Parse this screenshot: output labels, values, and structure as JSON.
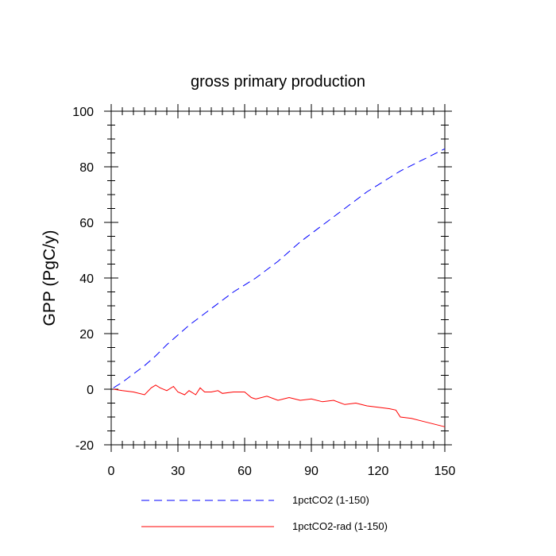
{
  "chart_data": {
    "type": "line",
    "title": "gross primary production",
    "xlabel": "",
    "ylabel": "GPP  (PgC/y)",
    "xlim": [
      0,
      150
    ],
    "ylim": [
      -20,
      100
    ],
    "x_ticks": [
      0,
      30,
      60,
      90,
      120,
      150
    ],
    "y_ticks": [
      -20,
      0,
      20,
      40,
      60,
      80,
      100
    ],
    "grid": false,
    "legend_position": "bottom",
    "series": [
      {
        "name": "1pctCO2 (1-150)",
        "color": "#0000ff",
        "line_style": "dashed",
        "x": [
          1,
          5,
          10,
          15,
          20,
          25,
          30,
          35,
          40,
          45,
          50,
          55,
          60,
          65,
          70,
          75,
          80,
          85,
          90,
          95,
          100,
          105,
          110,
          115,
          120,
          125,
          130,
          135,
          140,
          145,
          150
        ],
        "y": [
          0.5,
          2.5,
          5.5,
          8.5,
          12,
          16,
          19.5,
          23,
          26,
          29,
          32,
          35,
          37.5,
          40,
          43,
          46,
          49.5,
          53,
          56,
          59,
          62,
          65,
          68,
          71,
          73.5,
          76,
          78.5,
          80.5,
          82.5,
          84.5,
          86.5
        ]
      },
      {
        "name": "1pctCO2-rad (1-150)",
        "color": "#ff0000",
        "line_style": "solid",
        "x": [
          1,
          5,
          10,
          15,
          18,
          20,
          22,
          25,
          28,
          30,
          33,
          35,
          38,
          40,
          42,
          45,
          48,
          50,
          55,
          60,
          63,
          65,
          70,
          75,
          80,
          85,
          90,
          95,
          100,
          105,
          110,
          115,
          120,
          125,
          128,
          130,
          135,
          140,
          145,
          150
        ],
        "y": [
          0,
          -0.5,
          -1,
          -2,
          0.5,
          1.5,
          0.5,
          -0.5,
          1,
          -1,
          -2,
          -0.5,
          -2,
          0.5,
          -1,
          -1,
          -0.5,
          -1.5,
          -1,
          -1,
          -3,
          -3.5,
          -2.5,
          -4,
          -3,
          -4,
          -3.5,
          -4.5,
          -4,
          -5.5,
          -5,
          -6,
          -6.5,
          -7,
          -7.5,
          -10,
          -10.5,
          -11.5,
          -12.5,
          -13.5
        ]
      }
    ]
  }
}
